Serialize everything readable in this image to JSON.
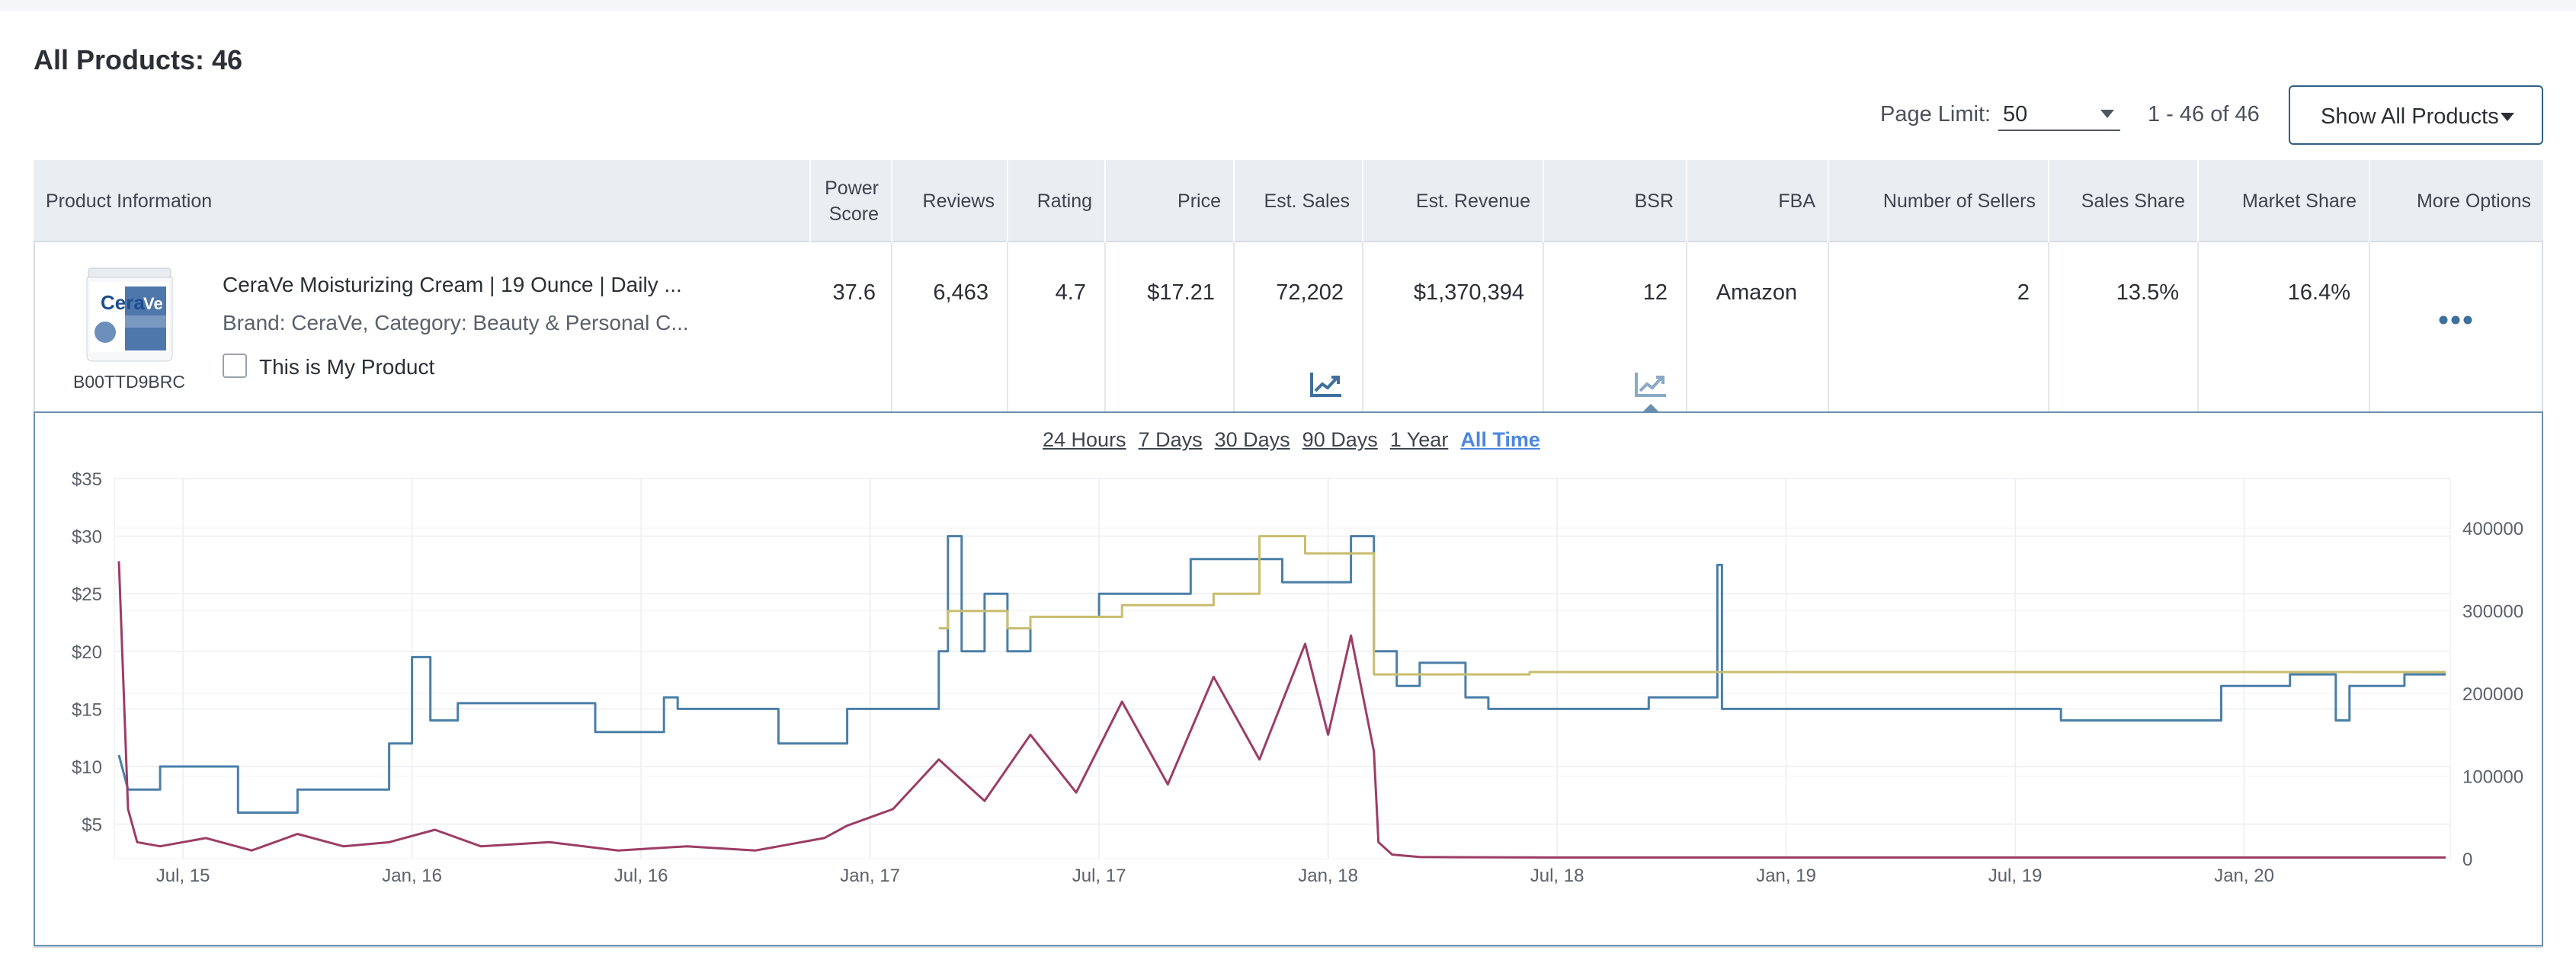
{
  "page": {
    "title": "All Products: 46"
  },
  "toolbar": {
    "page_limit_label": "Page Limit:",
    "page_limit_value": "50",
    "range_text": "1 - 46 of 46",
    "show_button_label": "Show All Products"
  },
  "table": {
    "headers": {
      "product_information": "Product Information",
      "power_score": "Power Score",
      "reviews": "Reviews",
      "rating": "Rating",
      "price": "Price",
      "est_sales": "Est. Sales",
      "est_revenue": "Est. Revenue",
      "bsr": "BSR",
      "fba": "FBA",
      "number_of_sellers": "Number of Sellers",
      "sales_share": "Sales Share",
      "market_share": "Market Share",
      "more_options": "More Options"
    },
    "rows": [
      {
        "asin": "B00TTD9BRC",
        "name": "CeraVe Moisturizing Cream | 19 Ounce | Daily ...",
        "brand_category": "Brand: CeraVe,   Category: Beauty & Personal C...",
        "my_product_label": "This is My Product",
        "power_score": "37.6",
        "reviews": "6,463",
        "rating": "4.7",
        "price": "$17.21",
        "est_sales": "72,202",
        "est_revenue": "$1,370,394",
        "bsr": "12",
        "fba": "Amazon",
        "number_of_sellers": "2",
        "sales_share": "13.5%",
        "market_share": "16.4%"
      }
    ]
  },
  "chart_ranges": [
    {
      "label": "24 Hours",
      "active": false
    },
    {
      "label": "7 Days",
      "active": false
    },
    {
      "label": "30 Days",
      "active": false
    },
    {
      "label": "90 Days",
      "active": false
    },
    {
      "label": "1 Year",
      "active": false
    },
    {
      "label": "All Time",
      "active": true
    }
  ],
  "colors": {
    "price_line": "#4a7fa8",
    "bsr_line": "#9c3d66",
    "third_party_line": "#c9bd6f",
    "accent": "#4b86e0",
    "icon": "#3f6f9e"
  },
  "chart_data": {
    "type": "line",
    "title": "",
    "x_tick_labels": [
      "Jul, 15",
      "Jan, 16",
      "Jul, 16",
      "Jan, 17",
      "Jul, 17",
      "Jan, 18",
      "Jul, 18",
      "Jan, 19",
      "Jul, 19",
      "Jan, 20"
    ],
    "y_left_ticks": [
      "$5",
      "$10",
      "$15",
      "$20",
      "$25",
      "$30",
      "$35"
    ],
    "y_left_range": [
      2,
      35
    ],
    "y_right_ticks": [
      "0",
      "100000",
      "200000",
      "300000",
      "400000"
    ],
    "y_right_range": [
      0,
      460000
    ],
    "x_range": [
      2015.35,
      2020.45
    ],
    "grid": true,
    "legend": "none",
    "series": [
      {
        "axis": "left",
        "color_key": "price_line",
        "points": [
          [
            2015.36,
            11
          ],
          [
            2015.38,
            8
          ],
          [
            2015.45,
            8
          ],
          [
            2015.45,
            10
          ],
          [
            2015.62,
            10
          ],
          [
            2015.62,
            6
          ],
          [
            2015.75,
            6
          ],
          [
            2015.75,
            8
          ],
          [
            2015.95,
            8
          ],
          [
            2015.95,
            12
          ],
          [
            2016.0,
            12
          ],
          [
            2016.0,
            19.5
          ],
          [
            2016.04,
            19.5
          ],
          [
            2016.04,
            14
          ],
          [
            2016.1,
            14
          ],
          [
            2016.1,
            15.5
          ],
          [
            2016.4,
            15.5
          ],
          [
            2016.4,
            13
          ],
          [
            2016.55,
            13
          ],
          [
            2016.55,
            16
          ],
          [
            2016.58,
            16
          ],
          [
            2016.58,
            15
          ],
          [
            2016.8,
            15
          ],
          [
            2016.8,
            12
          ],
          [
            2016.95,
            12
          ],
          [
            2016.95,
            15
          ],
          [
            2017.15,
            15
          ],
          [
            2017.15,
            20
          ],
          [
            2017.17,
            20
          ],
          [
            2017.17,
            30
          ],
          [
            2017.2,
            30
          ],
          [
            2017.2,
            20
          ],
          [
            2017.25,
            20
          ],
          [
            2017.25,
            25
          ],
          [
            2017.3,
            25
          ],
          [
            2017.3,
            20
          ],
          [
            2017.35,
            20
          ],
          [
            2017.35,
            23
          ],
          [
            2017.5,
            23
          ],
          [
            2017.5,
            25
          ],
          [
            2017.7,
            25
          ],
          [
            2017.7,
            28
          ],
          [
            2017.9,
            28
          ],
          [
            2017.9,
            26
          ],
          [
            2018.05,
            26
          ],
          [
            2018.05,
            30
          ],
          [
            2018.1,
            30
          ],
          [
            2018.1,
            20
          ],
          [
            2018.15,
            20
          ],
          [
            2018.15,
            17
          ],
          [
            2018.2,
            17
          ],
          [
            2018.2,
            19
          ],
          [
            2018.3,
            19
          ],
          [
            2018.3,
            16
          ],
          [
            2018.35,
            16
          ],
          [
            2018.35,
            15
          ],
          [
            2018.7,
            15
          ],
          [
            2018.7,
            16
          ],
          [
            2018.85,
            16
          ],
          [
            2018.85,
            27.5
          ],
          [
            2018.86,
            27.5
          ],
          [
            2018.86,
            15
          ],
          [
            2019.6,
            15
          ],
          [
            2019.6,
            14
          ],
          [
            2019.95,
            14
          ],
          [
            2019.95,
            17
          ],
          [
            2020.1,
            17
          ],
          [
            2020.1,
            18
          ],
          [
            2020.2,
            18
          ],
          [
            2020.2,
            14
          ],
          [
            2020.23,
            14
          ],
          [
            2020.23,
            17
          ],
          [
            2020.35,
            17
          ],
          [
            2020.35,
            18
          ],
          [
            2020.44,
            18
          ]
        ]
      },
      {
        "axis": "left",
        "color_key": "third_party_line",
        "points": [
          [
            2017.15,
            22
          ],
          [
            2017.17,
            22
          ],
          [
            2017.17,
            23.5
          ],
          [
            2017.3,
            23.5
          ],
          [
            2017.3,
            22
          ],
          [
            2017.35,
            22
          ],
          [
            2017.35,
            23
          ],
          [
            2017.55,
            23
          ],
          [
            2017.55,
            24
          ],
          [
            2017.75,
            24
          ],
          [
            2017.75,
            25
          ],
          [
            2017.85,
            25
          ],
          [
            2017.85,
            30
          ],
          [
            2017.95,
            30
          ],
          [
            2017.95,
            28.5
          ],
          [
            2018.1,
            28.5
          ],
          [
            2018.1,
            18
          ],
          [
            2018.44,
            18
          ],
          [
            2018.44,
            18.2
          ],
          [
            2020.44,
            18.2
          ]
        ]
      },
      {
        "axis": "right",
        "color_key": "bsr_line",
        "points": [
          [
            2015.36,
            360000
          ],
          [
            2015.38,
            60000
          ],
          [
            2015.4,
            20000
          ],
          [
            2015.45,
            15000
          ],
          [
            2015.55,
            25000
          ],
          [
            2015.65,
            10000
          ],
          [
            2015.75,
            30000
          ],
          [
            2015.85,
            15000
          ],
          [
            2015.95,
            20000
          ],
          [
            2016.05,
            35000
          ],
          [
            2016.15,
            15000
          ],
          [
            2016.3,
            20000
          ],
          [
            2016.45,
            10000
          ],
          [
            2016.6,
            15000
          ],
          [
            2016.75,
            10000
          ],
          [
            2016.9,
            25000
          ],
          [
            2016.95,
            40000
          ],
          [
            2017.05,
            60000
          ],
          [
            2017.15,
            120000
          ],
          [
            2017.25,
            70000
          ],
          [
            2017.35,
            150000
          ],
          [
            2017.45,
            80000
          ],
          [
            2017.55,
            190000
          ],
          [
            2017.65,
            90000
          ],
          [
            2017.75,
            220000
          ],
          [
            2017.85,
            120000
          ],
          [
            2017.95,
            260000
          ],
          [
            2018.0,
            150000
          ],
          [
            2018.05,
            270000
          ],
          [
            2018.1,
            130000
          ],
          [
            2018.11,
            20000
          ],
          [
            2018.14,
            5000
          ],
          [
            2018.2,
            2000
          ],
          [
            2018.5,
            1500
          ],
          [
            2019.0,
            1500
          ],
          [
            2019.5,
            1500
          ],
          [
            2020.0,
            1500
          ],
          [
            2020.44,
            1500
          ]
        ]
      }
    ]
  }
}
